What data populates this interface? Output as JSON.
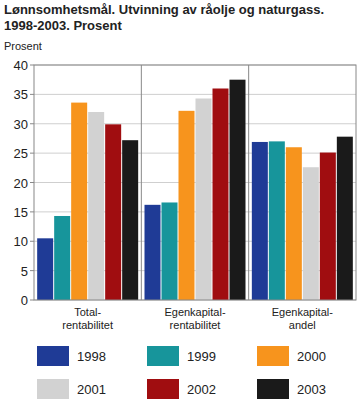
{
  "chart_data": {
    "type": "bar",
    "title": "Lønnsomhetsmål. Utvinning av råolje og naturgass. 1998-2003. Prosent",
    "y_label": "Prosent",
    "categories": [
      "Total-rentabilitet",
      "Egenkapital-rentabilitet",
      "Egenkapital-andel"
    ],
    "series": [
      {
        "name": "1998",
        "color": "#1f3b96",
        "values": [
          10.5,
          16.2,
          26.9
        ]
      },
      {
        "name": "1999",
        "color": "#17959b",
        "values": [
          14.3,
          16.6,
          27.0
        ]
      },
      {
        "name": "2000",
        "color": "#f7941d",
        "values": [
          33.6,
          32.2,
          26.0
        ]
      },
      {
        "name": "2001",
        "color": "#d2d2d2",
        "values": [
          32.0,
          34.3,
          22.6
        ]
      },
      {
        "name": "2002",
        "color": "#a00d10",
        "values": [
          29.9,
          36.0,
          25.1
        ]
      },
      {
        "name": "2003",
        "color": "#1a1a1a",
        "values": [
          27.2,
          37.5,
          27.8
        ]
      }
    ],
    "ylim": [
      0,
      40
    ],
    "yticks": [
      0,
      5,
      10,
      15,
      20,
      25,
      30,
      35,
      40
    ],
    "grid": true,
    "legend": "bottom"
  }
}
